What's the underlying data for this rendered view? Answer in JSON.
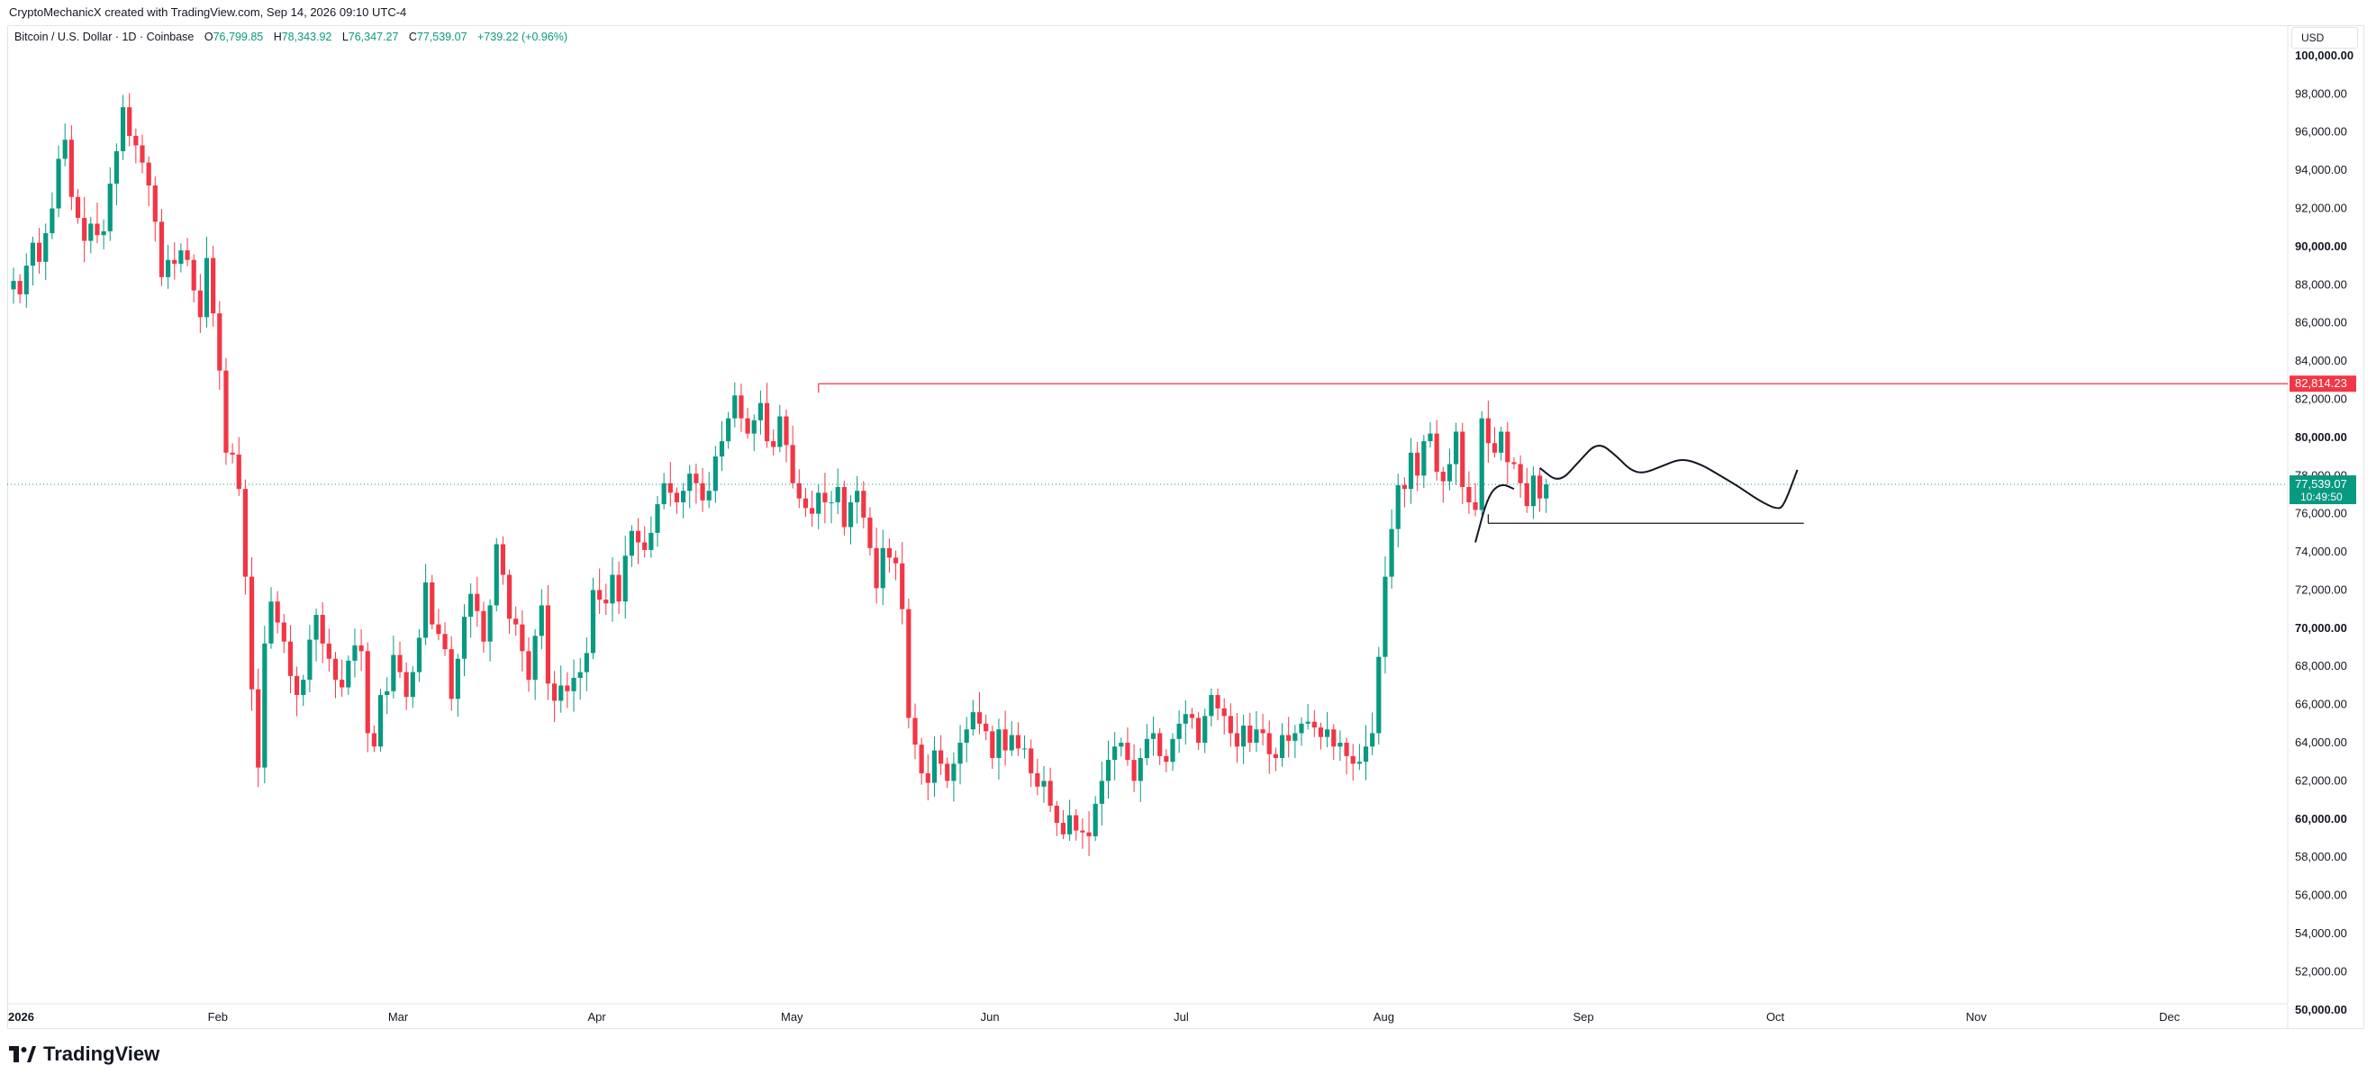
{
  "credit": "CryptoMechanicX created with TradingView.com, Sep 14, 2026 09:10 UTC-4",
  "legend": {
    "symbol": "Bitcoin / U.S. Dollar · 1D · Coinbase",
    "o_label": "O",
    "o_value": "76,799.85",
    "h_label": "H",
    "h_value": "78,343.92",
    "l_label": "L",
    "l_value": "76,347.27",
    "c_label": "C",
    "c_value": "77,539.07",
    "change": "+739.22 (+0.96%)"
  },
  "currency": "USD",
  "brand": "TradingView",
  "colors": {
    "up": "#089981",
    "down": "#f23645",
    "resistance": "#f23645",
    "text": "#131722",
    "grid": "#e0e3eb"
  },
  "chart_data": {
    "type": "candlestick",
    "ylim": [
      49000,
      101600
    ],
    "y_ticks": [
      {
        "value": 50000,
        "label": "50,000.00",
        "bold": true
      },
      {
        "value": 52000,
        "label": "52,000.00",
        "bold": false
      },
      {
        "value": 54000,
        "label": "54,000.00",
        "bold": false
      },
      {
        "value": 56000,
        "label": "56,000.00",
        "bold": false
      },
      {
        "value": 58000,
        "label": "58,000.00",
        "bold": false
      },
      {
        "value": 60000,
        "label": "60,000.00",
        "bold": true
      },
      {
        "value": 62000,
        "label": "62,000.00",
        "bold": false
      },
      {
        "value": 64000,
        "label": "64,000.00",
        "bold": false
      },
      {
        "value": 66000,
        "label": "66,000.00",
        "bold": false
      },
      {
        "value": 68000,
        "label": "68,000.00",
        "bold": false
      },
      {
        "value": 70000,
        "label": "70,000.00",
        "bold": true
      },
      {
        "value": 72000,
        "label": "72,000.00",
        "bold": false
      },
      {
        "value": 74000,
        "label": "74,000.00",
        "bold": false
      },
      {
        "value": 76000,
        "label": "76,000.00",
        "bold": false
      },
      {
        "value": 78000,
        "label": "78,000.00",
        "bold": false
      },
      {
        "value": 80000,
        "label": "80,000.00",
        "bold": true
      },
      {
        "value": 82000,
        "label": "82,000.00",
        "bold": false
      },
      {
        "value": 84000,
        "label": "84,000.00",
        "bold": false
      },
      {
        "value": 86000,
        "label": "86,000.00",
        "bold": false
      },
      {
        "value": 88000,
        "label": "88,000.00",
        "bold": false
      },
      {
        "value": 90000,
        "label": "90,000.00",
        "bold": true
      },
      {
        "value": 92000,
        "label": "92,000.00",
        "bold": false
      },
      {
        "value": 94000,
        "label": "94,000.00",
        "bold": false
      },
      {
        "value": 96000,
        "label": "96,000.00",
        "bold": false
      },
      {
        "value": 98000,
        "label": "98,000.00",
        "bold": false
      },
      {
        "value": 100000,
        "label": "100,000.00",
        "bold": true
      }
    ],
    "x_ticks": [
      {
        "day": 0,
        "label": "2026",
        "bold": true
      },
      {
        "day": 31,
        "label": "Feb",
        "bold": false
      },
      {
        "day": 59,
        "label": "Mar",
        "bold": false
      },
      {
        "day": 90,
        "label": "Apr",
        "bold": false
      },
      {
        "day": 120,
        "label": "May",
        "bold": false
      },
      {
        "day": 151,
        "label": "Jun",
        "bold": false
      },
      {
        "day": 181,
        "label": "Jul",
        "bold": false
      },
      {
        "day": 212,
        "label": "Aug",
        "bold": false
      },
      {
        "day": 243,
        "label": "Sep",
        "bold": false
      },
      {
        "day": 273,
        "label": "Oct",
        "bold": false
      },
      {
        "day": 304,
        "label": "Nov",
        "bold": false
      },
      {
        "day": 334,
        "label": "Dec",
        "bold": false
      }
    ],
    "resistance_level": {
      "value": 82814.23,
      "label": "82,814.23",
      "from_day": 125
    },
    "support_level": {
      "value": 75500,
      "from_day": 229,
      "to_day": 278
    },
    "last_price": {
      "value": 77539.07,
      "label": "77,539.07",
      "countdown": "10:49:50"
    },
    "projection": [
      [
        237,
        78400
      ],
      [
        240,
        77600
      ],
      [
        243,
        78700
      ],
      [
        246,
        79800
      ],
      [
        249,
        79000
      ],
      [
        251,
        78300
      ],
      [
        253,
        78100
      ],
      [
        256,
        78500
      ],
      [
        259,
        78900
      ],
      [
        262,
        78600
      ],
      [
        265,
        78000
      ],
      [
        268,
        77400
      ],
      [
        271,
        76700
      ],
      [
        274,
        76200
      ],
      [
        275,
        76500
      ],
      [
        277,
        78300
      ]
    ],
    "breakout_path": [
      [
        227,
        74500
      ],
      [
        229,
        77000
      ],
      [
        231,
        77600
      ],
      [
        233,
        77300
      ]
    ],
    "closes": [
      88200,
      87500,
      89000,
      90200,
      89200,
      90700,
      92000,
      94600,
      95600,
      92600,
      91500,
      90300,
      91200,
      90600,
      90800,
      93300,
      95000,
      97300,
      95800,
      95300,
      94400,
      93200,
      91300,
      88400,
      89300,
      89100,
      89800,
      89300,
      87700,
      86300,
      89400,
      86500,
      83500,
      79200,
      79100,
      77300,
      72700,
      66800,
      62700,
      69200,
      71400,
      70300,
      69300,
      67500,
      66500,
      67300,
      69400,
      70700,
      69200,
      68400,
      67300,
      66900,
      68300,
      69100,
      68800,
      64500,
      63800,
      66500,
      66700,
      68600,
      67700,
      66400,
      67700,
      69500,
      72400,
      70200,
      69700,
      68900,
      66300,
      68400,
      70600,
      71800,
      70900,
      69300,
      71200,
      74400,
      72800,
      70500,
      70200,
      68800,
      67300,
      69600,
      71200,
      67100,
      66200,
      67000,
      66700,
      67400,
      67700,
      68700,
      72000,
      71500,
      71300,
      72800,
      71400,
      73800,
      75100,
      74500,
      74100,
      75000,
      76500,
      77600,
      77100,
      76600,
      77200,
      78100,
      77600,
      76700,
      77200,
      79000,
      79800,
      81000,
      82200,
      81000,
      80200,
      80900,
      81800,
      79800,
      79500,
      81100,
      79600,
      77600,
      76800,
      76300,
      76000,
      77100,
      76600,
      76600,
      77400,
      75300,
      76600,
      77200,
      75800,
      74200,
      72100,
      74200,
      73700,
      73400,
      71000,
      65300,
      63900,
      62400,
      61900,
      63600,
      62900,
      62000,
      62900,
      64000,
      64700,
      65600,
      65000,
      64600,
      63200,
      64700,
      63600,
      64400,
      63700,
      63700,
      62400,
      61700,
      62000,
      60700,
      59800,
      59200,
      60200,
      59400,
      59300,
      59100,
      60800,
      62000,
      63100,
      63800,
      64000,
      63100,
      62000,
      63200,
      64200,
      64500,
      63300,
      63000,
      64200,
      65000,
      65500,
      65300,
      64000,
      65400,
      66500,
      65800,
      65400,
      64500,
      63800,
      64900,
      64000,
      64700,
      64500,
      63400,
      63200,
      64400,
      64100,
      64500,
      65000,
      65100,
      64800,
      64300,
      64700,
      63800,
      64000,
      63300,
      62900,
      63000,
      63800,
      64500,
      68500,
      72700,
      75200,
      77500,
      77300,
      79200,
      78000,
      79800,
      80200,
      78200,
      77700,
      78600,
      80300,
      77400,
      76600,
      76200,
      81000,
      79700,
      79200,
      80300,
      78700,
      78600,
      77600,
      76400,
      78000,
      76800,
      77540
    ],
    "series": [
      {
        "name": "Bitcoin / U.S. Dollar · 1D · Coinbase"
      }
    ]
  }
}
